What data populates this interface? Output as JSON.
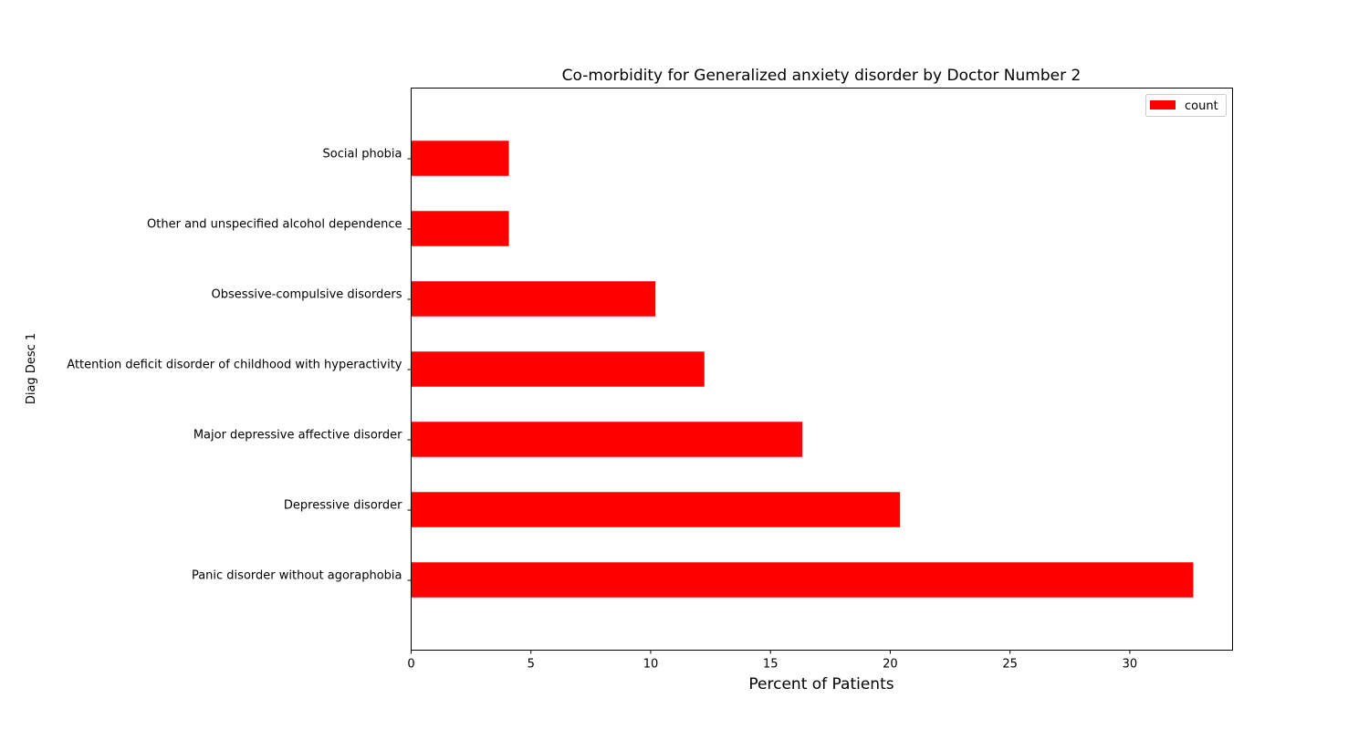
{
  "chart_data": {
    "type": "bar",
    "orientation": "horizontal",
    "title": "Co-morbidity for Generalized anxiety disorder by Doctor Number 2",
    "xlabel": "Percent of Patients",
    "ylabel": "Diag Desc 1",
    "categories": [
      "Panic disorder without agoraphobia",
      "Depressive disorder",
      "Major depressive affective disorder",
      "Attention deficit disorder of childhood with hyperactivity",
      "Obsessive-compulsive disorders",
      "Other and unspecified alcohol dependence",
      "Social phobia"
    ],
    "series": [
      {
        "name": "count",
        "color": "#ff0000",
        "values": [
          32.65,
          20.41,
          16.33,
          12.24,
          10.2,
          4.08,
          4.08
        ]
      }
    ],
    "xlim": [
      0,
      34.29
    ],
    "xticks": [
      0,
      5,
      10,
      15,
      20,
      25,
      30
    ],
    "legend_position": "top-right",
    "grid": false
  }
}
